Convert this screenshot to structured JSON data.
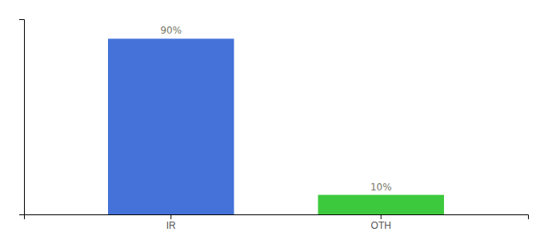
{
  "chart_data": {
    "type": "bar",
    "categories": [
      "IR",
      "OTH"
    ],
    "values": [
      90,
      10
    ],
    "value_labels": [
      "90%",
      "10%"
    ],
    "data_labels": true,
    "colors": [
      "#4472d9",
      "#3dc93d"
    ],
    "ylim": [
      0,
      100
    ],
    "grid": false,
    "tick_labels": "x"
  }
}
